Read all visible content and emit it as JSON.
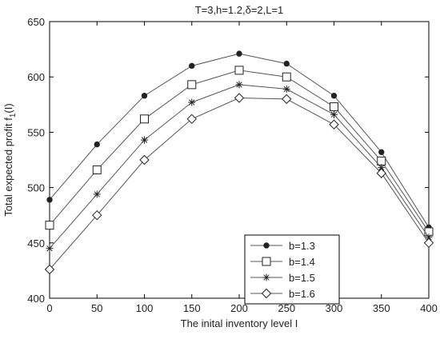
{
  "chart_data": {
    "type": "line",
    "title": "T=3,h=1.2,δ=2,L=1",
    "xlabel": "The inital inventory level I",
    "ylabel": "Total expected profit f",
    "ylabel_sub": "1",
    "ylabel_suffix": "(I)",
    "x": [
      0,
      50,
      100,
      150,
      200,
      250,
      300,
      350,
      400
    ],
    "xlim": [
      0,
      400
    ],
    "ylim": [
      400,
      650
    ],
    "xticks": [
      0,
      50,
      100,
      150,
      200,
      250,
      300,
      350,
      400
    ],
    "yticks": [
      400,
      450,
      500,
      550,
      600,
      650
    ],
    "grid": false,
    "legend_position": "bottom-right",
    "series": [
      {
        "name": "b=1.3",
        "marker": "dot",
        "values": [
          489,
          539,
          583,
          610,
          621,
          612,
          583,
          532,
          464
        ]
      },
      {
        "name": "b=1.4",
        "marker": "square",
        "values": [
          466,
          516,
          562,
          593,
          606,
          600,
          573,
          524,
          460
        ]
      },
      {
        "name": "b=1.5",
        "marker": "star",
        "values": [
          445,
          494,
          543,
          577,
          593,
          589,
          566,
          518,
          455
        ]
      },
      {
        "name": "b=1.6",
        "marker": "diamond",
        "values": [
          426,
          475,
          525,
          562,
          581,
          580,
          557,
          513,
          450
        ]
      }
    ],
    "line_color": "#555555",
    "marker_color": "#222222"
  }
}
